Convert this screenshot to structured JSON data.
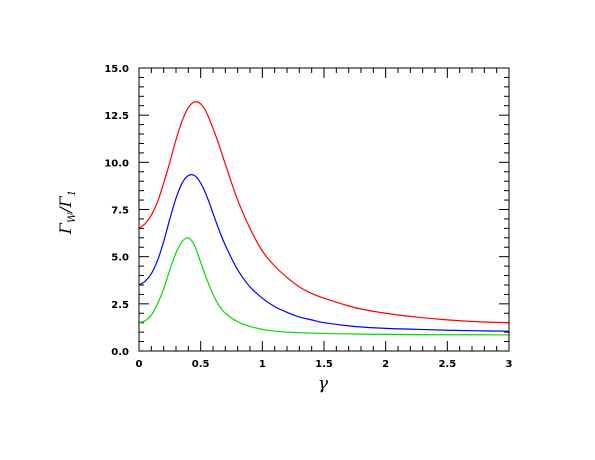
{
  "chart_data": {
    "type": "line",
    "title": "",
    "xlabel": "γ",
    "ylabel": "Γ_W/Γ_1",
    "ylabel_main_1": "Γ",
    "ylabel_sub_1": "W",
    "ylabel_slash": "/",
    "ylabel_main_2": "Γ",
    "ylabel_sub_2": "1",
    "xlim": [
      0,
      3
    ],
    "ylim": [
      0,
      15
    ],
    "xticks": [
      "0",
      "0.5",
      "1",
      "1.5",
      "2",
      "2.5",
      "3"
    ],
    "yticks": [
      "0.0",
      "2.5",
      "5.0",
      "7.5",
      "10.0",
      "12.5",
      "15.0"
    ],
    "xtick_values": [
      0,
      0.5,
      1,
      1.5,
      2,
      2.5,
      3
    ],
    "ytick_values": [
      0,
      2.5,
      5,
      7.5,
      10,
      12.5,
      15
    ],
    "grid": false,
    "series": [
      {
        "color": "#ff0000",
        "x": [
          0,
          0.05,
          0.1,
          0.15,
          0.2,
          0.25,
          0.3,
          0.35,
          0.4,
          0.45,
          0.5,
          0.55,
          0.6,
          0.65,
          0.7,
          0.8,
          0.9,
          1.0,
          1.1,
          1.2,
          1.3,
          1.4,
          1.5,
          1.75,
          2.0,
          2.25,
          2.5,
          2.75,
          3.0
        ],
        "y": [
          6.5,
          6.75,
          7.2,
          7.9,
          8.9,
          10.0,
          11.2,
          12.2,
          12.9,
          13.2,
          13.1,
          12.6,
          11.8,
          10.9,
          9.9,
          8.0,
          6.5,
          5.3,
          4.5,
          3.9,
          3.4,
          3.05,
          2.8,
          2.3,
          2.0,
          1.8,
          1.65,
          1.55,
          1.5
        ]
      },
      {
        "color": "#0000ff",
        "x": [
          0,
          0.05,
          0.1,
          0.15,
          0.2,
          0.25,
          0.3,
          0.35,
          0.4,
          0.45,
          0.5,
          0.55,
          0.6,
          0.65,
          0.7,
          0.8,
          0.9,
          1.0,
          1.1,
          1.2,
          1.3,
          1.4,
          1.5,
          1.75,
          2.0,
          2.25,
          2.5,
          2.75,
          3.0
        ],
        "y": [
          3.5,
          3.7,
          4.1,
          4.8,
          5.8,
          7.0,
          8.1,
          8.9,
          9.3,
          9.3,
          8.9,
          8.2,
          7.3,
          6.4,
          5.6,
          4.3,
          3.4,
          2.8,
          2.35,
          2.05,
          1.8,
          1.65,
          1.5,
          1.3,
          1.2,
          1.15,
          1.1,
          1.07,
          1.05
        ]
      },
      {
        "color": "#00dd00",
        "x": [
          0,
          0.05,
          0.1,
          0.15,
          0.2,
          0.25,
          0.3,
          0.35,
          0.4,
          0.45,
          0.5,
          0.55,
          0.6,
          0.65,
          0.7,
          0.8,
          0.9,
          1.0,
          1.1,
          1.2,
          1.3,
          1.4,
          1.5,
          1.75,
          2.0,
          2.25,
          2.5,
          2.75,
          3.0
        ],
        "y": [
          1.5,
          1.6,
          1.9,
          2.5,
          3.3,
          4.3,
          5.2,
          5.8,
          6.0,
          5.6,
          4.7,
          3.8,
          3.0,
          2.4,
          2.0,
          1.55,
          1.3,
          1.15,
          1.05,
          1.0,
          0.97,
          0.95,
          0.93,
          0.9,
          0.88,
          0.87,
          0.86,
          0.86,
          0.85
        ]
      }
    ]
  }
}
